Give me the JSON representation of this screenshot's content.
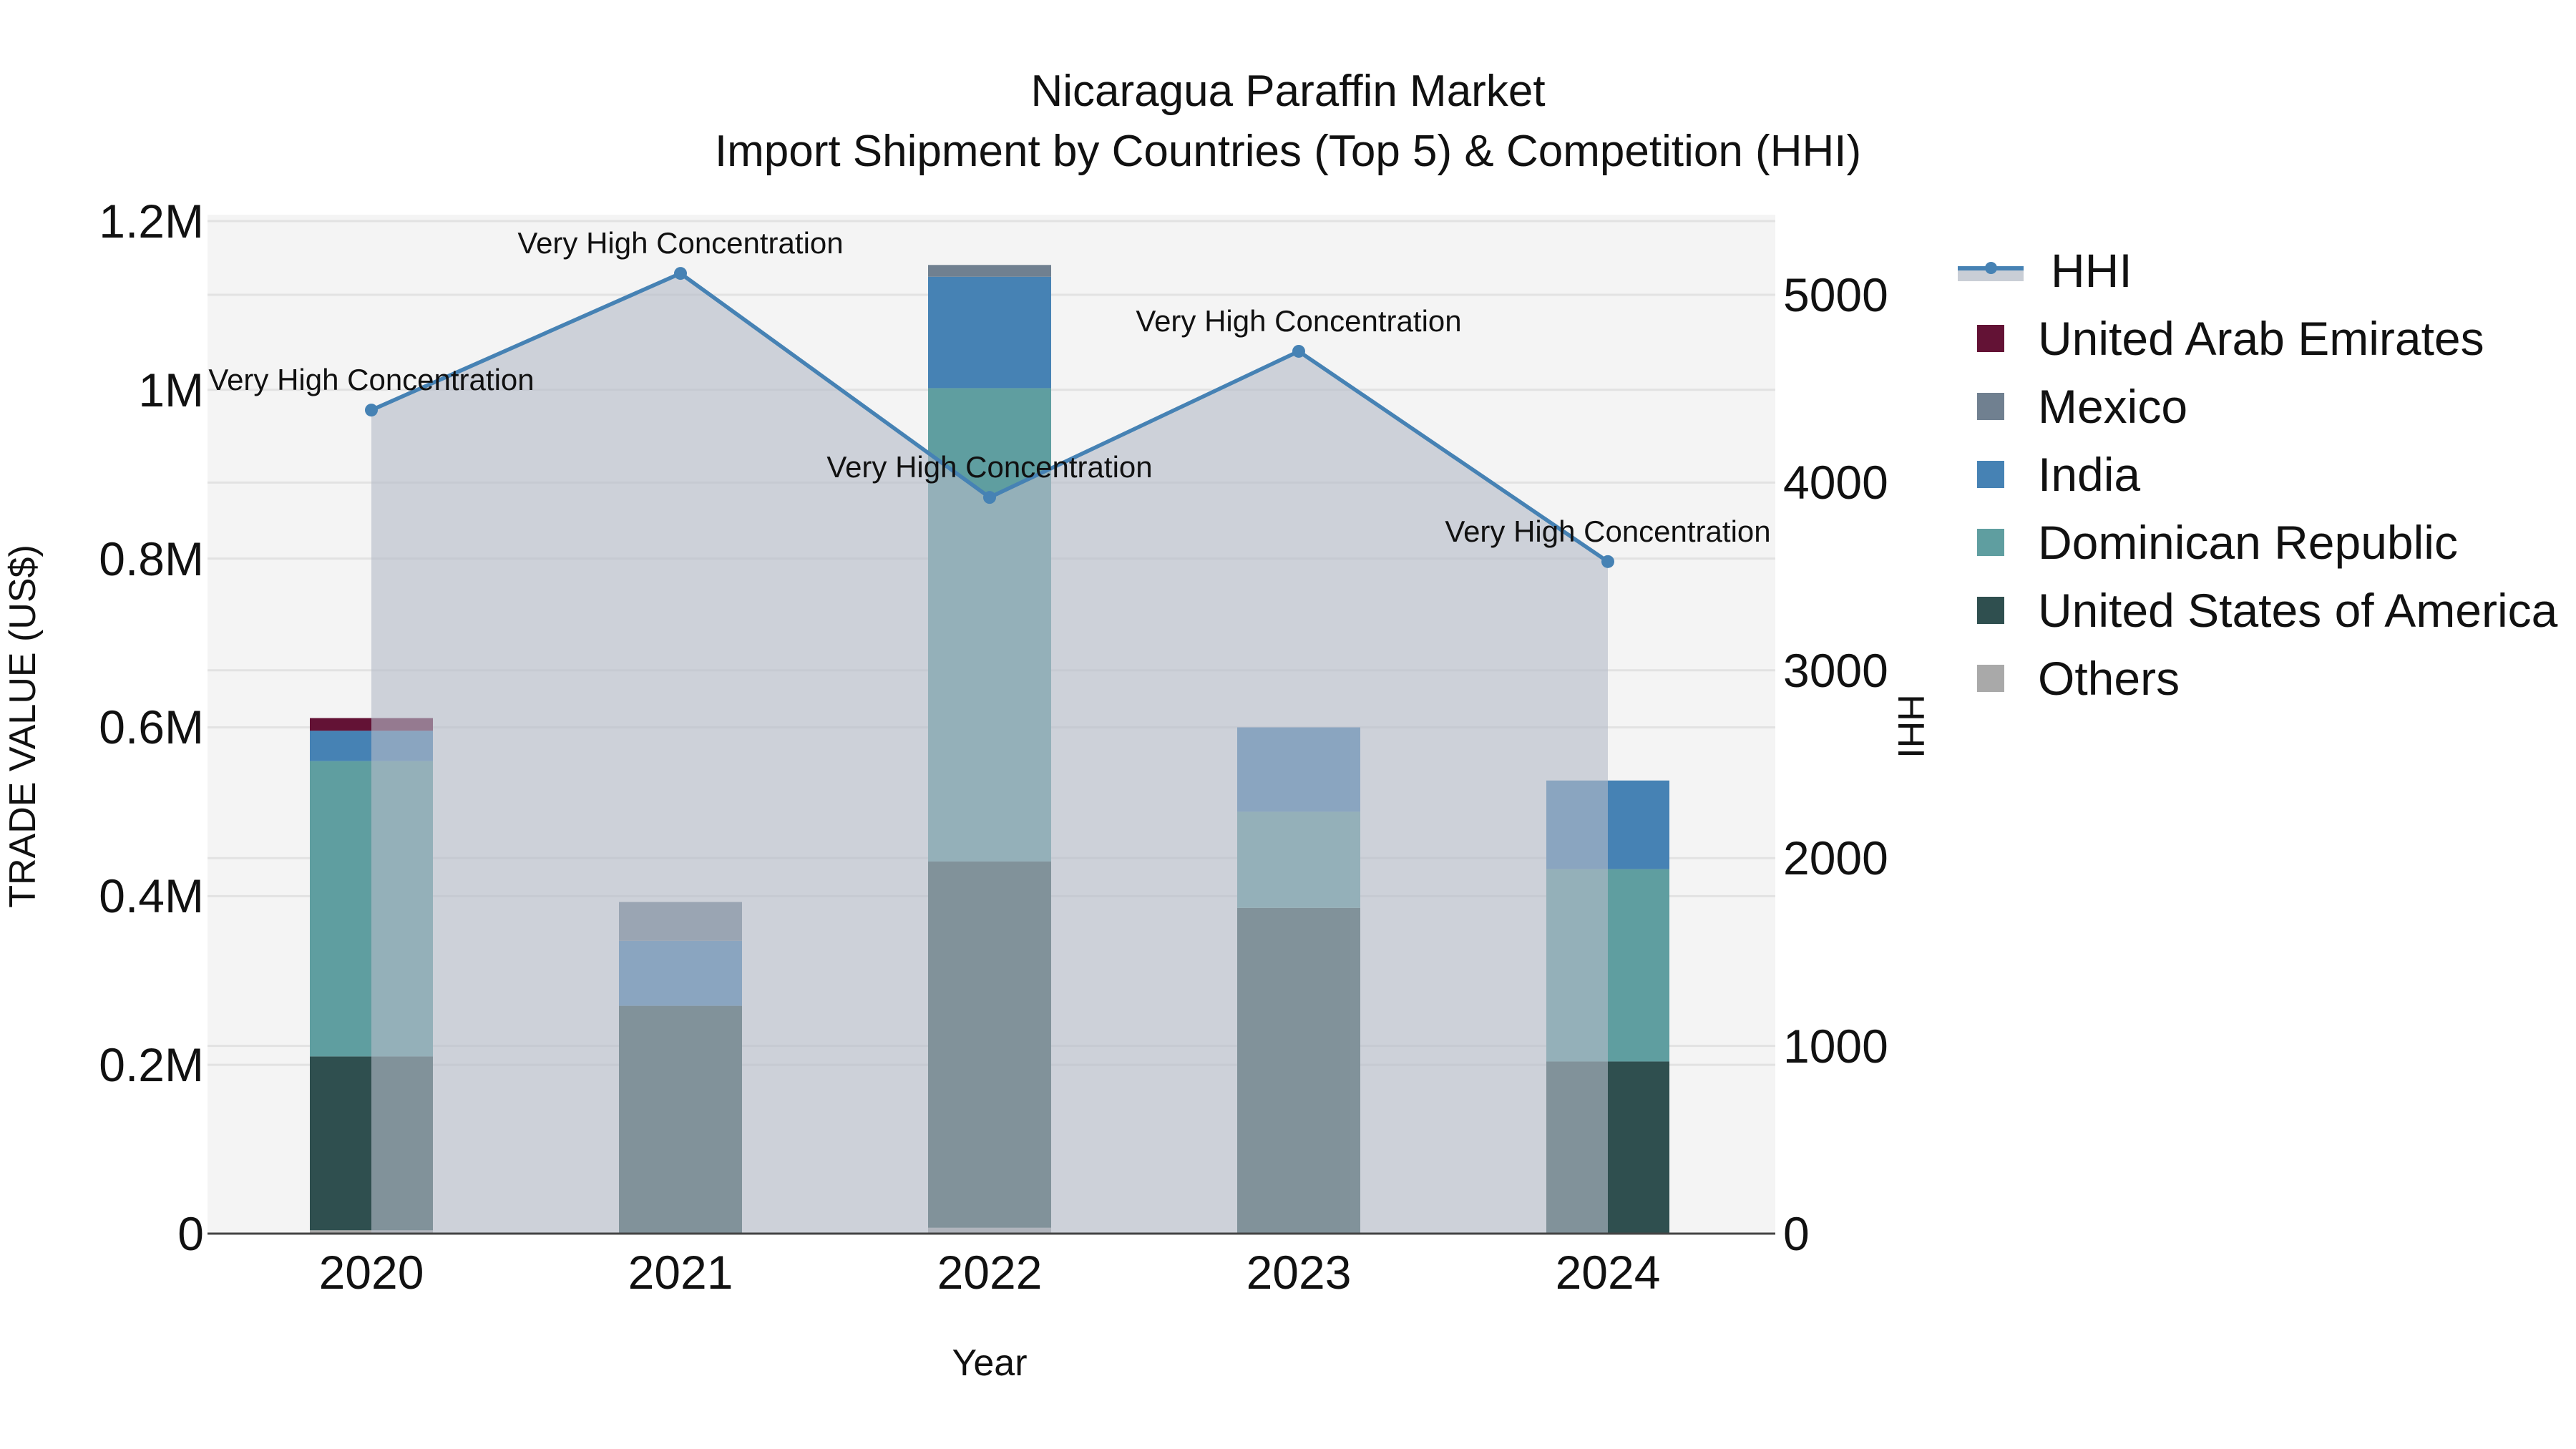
{
  "title": {
    "line1": "Nicaragua Paraffin Market",
    "line2": "Import Shipment by Countries (Top 5) & Competition (HHI)"
  },
  "axes": {
    "x_label": "Year",
    "y_left_label": "TRADE VALUE (US$)",
    "y_right_label": "HHI",
    "y_left_ticks": [
      "0",
      "0.2M",
      "0.4M",
      "0.6M",
      "0.8M",
      "1M",
      "1.2M"
    ],
    "y_left_tick_values": [
      0,
      0.2,
      0.4,
      0.6,
      0.8,
      1.0,
      1.2
    ],
    "y_right_ticks": [
      "0",
      "1000",
      "2000",
      "3000",
      "4000",
      "5000"
    ],
    "y_right_tick_values": [
      0,
      1000,
      2000,
      3000,
      4000,
      5000
    ],
    "x_ticks": [
      "2020",
      "2021",
      "2022",
      "2023",
      "2024"
    ]
  },
  "legend": [
    {
      "label": "HHI",
      "type": "line",
      "color": "#4682b4"
    },
    {
      "label": "United Arab Emirates",
      "type": "bar",
      "color": "#631235"
    },
    {
      "label": "Mexico",
      "type": "bar",
      "color": "#708090"
    },
    {
      "label": "India",
      "type": "bar",
      "color": "#4682b4"
    },
    {
      "label": "Dominican Republic",
      "type": "bar",
      "color": "#5f9ea0"
    },
    {
      "label": "United States of America",
      "type": "bar",
      "color": "#2f4f4f"
    },
    {
      "label": "Others",
      "type": "bar",
      "color": "#a9a9a9"
    }
  ],
  "annotations": [
    {
      "year": "2020",
      "text": "Very High Concentration"
    },
    {
      "year": "2021",
      "text": "Very High Concentration"
    },
    {
      "year": "2022",
      "text": "Very High Concentration"
    },
    {
      "year": "2023",
      "text": "Very High Concentration"
    },
    {
      "year": "2024",
      "text": "Very High Concentration"
    }
  ],
  "chart_data": {
    "type": "bar",
    "subtype": "stacked bar + line (secondary axis) with area fill",
    "title": "Nicaragua Paraffin Market — Import Shipment by Countries (Top 5) & Competition (HHI)",
    "xlabel": "Year",
    "ylabel": "TRADE VALUE (US$)",
    "y2label": "HHI",
    "categories": [
      "2020",
      "2021",
      "2022",
      "2023",
      "2024"
    ],
    "ylim": [
      0,
      1200000
    ],
    "y2lim": [
      0,
      5400
    ],
    "grid": true,
    "legend_position": "right",
    "stack_order_bottom_to_top": [
      "Others",
      "United States of America",
      "Dominican Republic",
      "India",
      "Mexico",
      "United Arab Emirates"
    ],
    "series": [
      {
        "name": "Others",
        "color": "#a9a9a9",
        "values": [
          4000,
          0,
          7000,
          0,
          0
        ]
      },
      {
        "name": "United States of America",
        "color": "#2f4f4f",
        "values": [
          206000,
          270000,
          434000,
          386000,
          204000
        ]
      },
      {
        "name": "Dominican Republic",
        "color": "#5f9ea0",
        "values": [
          350000,
          0,
          561000,
          114000,
          228000
        ]
      },
      {
        "name": "India",
        "color": "#4682b4",
        "values": [
          36000,
          77000,
          132000,
          100000,
          105000
        ]
      },
      {
        "name": "Mexico",
        "color": "#708090",
        "values": [
          0,
          46000,
          14000,
          0,
          0
        ]
      },
      {
        "name": "United Arab Emirates",
        "color": "#631235",
        "values": [
          15000,
          0,
          0,
          0,
          0
        ]
      }
    ],
    "totals": [
      611000,
      393000,
      1148000,
      600000,
      537000
    ],
    "line_series": {
      "name": "HHI",
      "axis": "right",
      "color": "#4682b4",
      "fill": "tozeroy",
      "fill_color": "rgba(180,188,200,0.62)",
      "values": [
        4386,
        5114,
        3921,
        4699,
        3579
      ],
      "labels": [
        "Very High Concentration",
        "Very High Concentration",
        "Very High Concentration",
        "Very High Concentration",
        "Very High Concentration"
      ]
    }
  }
}
